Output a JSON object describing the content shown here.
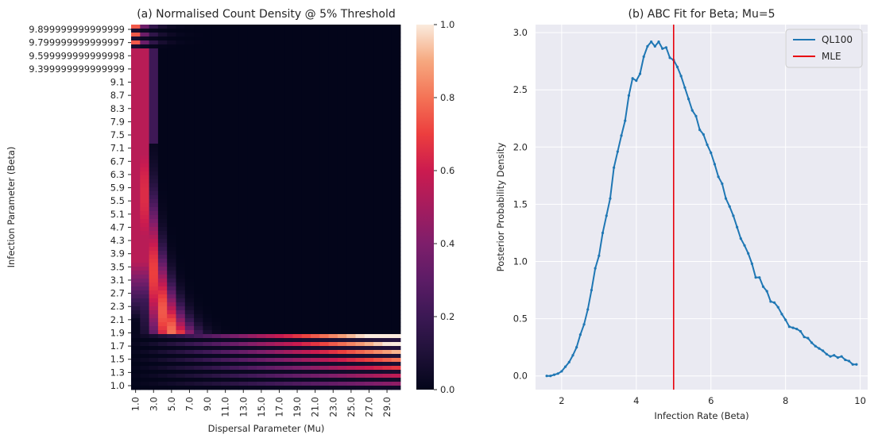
{
  "chart_data": [
    {
      "type": "heatmap",
      "title": "(a) Normalised Count Density @ 5% Threshold",
      "xlabel": "Dispersal Parameter (Mu)",
      "ylabel": "Infection Parameter (Beta)",
      "x_tick_labels": [
        "1.0",
        "3.0",
        "5.0",
        "7.0",
        "9.0",
        "11.0",
        "13.0",
        "15.0",
        "17.0",
        "19.0",
        "21.0",
        "23.0",
        "25.0",
        "27.0",
        "29.0"
      ],
      "y_tick_labels": [
        "9.899999999999999",
        "9.799999999999997",
        "9.599999999999998",
        "9.399999999999999",
        "9.1",
        "8.7",
        "8.3",
        "7.9",
        "7.5",
        "7.1",
        "6.7",
        "6.3",
        "5.9",
        "5.5",
        "5.1",
        "4.7",
        "4.3",
        "3.9",
        "3.5",
        "3.1",
        "2.7",
        "2.3",
        "2.1",
        "1.9",
        "1.7",
        "1.5",
        "1.3",
        "1.0"
      ],
      "x_range": [
        1,
        30
      ],
      "y_range": [
        1.0,
        9.9
      ],
      "colorbar": {
        "ticks": [
          "0.0",
          "0.2",
          "0.4",
          "0.6",
          "0.8",
          "1.0"
        ],
        "range": [
          0,
          1
        ],
        "colormap": "rocket"
      },
      "description_of_values": "Density peaks (~1.0) along a hyperbolic ridge where Beta*Mu is roughly constant; left column high for Beta>3; alternating banded rows for Beta<2.3 and near the top."
    },
    {
      "type": "line",
      "title": "(b) ABC Fit for Beta; Mu=5",
      "xlabel": "Infection Rate (Beta)",
      "ylabel": "Posterior Probability Density",
      "xlim": [
        1.3,
        10.2
      ],
      "ylim": [
        -0.12,
        3.07
      ],
      "x_ticks": [
        "2",
        "4",
        "6",
        "8",
        "10"
      ],
      "y_ticks": [
        "0.0",
        "0.5",
        "1.0",
        "1.5",
        "2.0",
        "2.5",
        "3.0"
      ],
      "grid": true,
      "legend_position": "top-right",
      "series": [
        {
          "name": "QL100",
          "color": "#1f77b4",
          "x": [
            1.6,
            1.7,
            1.8,
            1.9,
            2.0,
            2.1,
            2.2,
            2.3,
            2.4,
            2.5,
            2.6,
            2.7,
            2.8,
            2.9,
            3.0,
            3.1,
            3.2,
            3.3,
            3.4,
            3.5,
            3.6,
            3.7,
            3.8,
            3.9,
            4.0,
            4.1,
            4.2,
            4.3,
            4.4,
            4.5,
            4.6,
            4.7,
            4.8,
            4.9,
            5.0,
            5.1,
            5.2,
            5.3,
            5.4,
            5.5,
            5.6,
            5.7,
            5.8,
            5.9,
            6.0,
            6.1,
            6.2,
            6.3,
            6.4,
            6.5,
            6.6,
            6.7,
            6.8,
            6.9,
            7.0,
            7.1,
            7.2,
            7.3,
            7.4,
            7.5,
            7.6,
            7.7,
            7.8,
            7.9,
            8.0,
            8.1,
            8.2,
            8.3,
            8.4,
            8.5,
            8.6,
            8.7,
            8.8,
            8.9,
            9.0,
            9.1,
            9.2,
            9.3,
            9.4,
            9.5,
            9.6,
            9.7,
            9.8,
            9.9
          ],
          "y": [
            0.0,
            0.0,
            0.01,
            0.02,
            0.04,
            0.08,
            0.12,
            0.18,
            0.25,
            0.36,
            0.45,
            0.58,
            0.75,
            0.94,
            1.05,
            1.25,
            1.4,
            1.55,
            1.82,
            1.96,
            2.1,
            2.23,
            2.45,
            2.6,
            2.58,
            2.64,
            2.79,
            2.88,
            2.92,
            2.88,
            2.92,
            2.86,
            2.87,
            2.78,
            2.76,
            2.7,
            2.62,
            2.52,
            2.42,
            2.32,
            2.27,
            2.15,
            2.11,
            2.02,
            1.95,
            1.85,
            1.74,
            1.68,
            1.55,
            1.48,
            1.4,
            1.3,
            1.2,
            1.14,
            1.07,
            0.98,
            0.86,
            0.86,
            0.78,
            0.74,
            0.65,
            0.64,
            0.6,
            0.54,
            0.49,
            0.43,
            0.42,
            0.41,
            0.39,
            0.34,
            0.33,
            0.29,
            0.26,
            0.24,
            0.22,
            0.19,
            0.17,
            0.18,
            0.16,
            0.17,
            0.14,
            0.13,
            0.1,
            0.1
          ]
        },
        {
          "name": "MLE",
          "color": "#e8000b",
          "type": "vline",
          "x_value": 5.0
        }
      ]
    }
  ]
}
